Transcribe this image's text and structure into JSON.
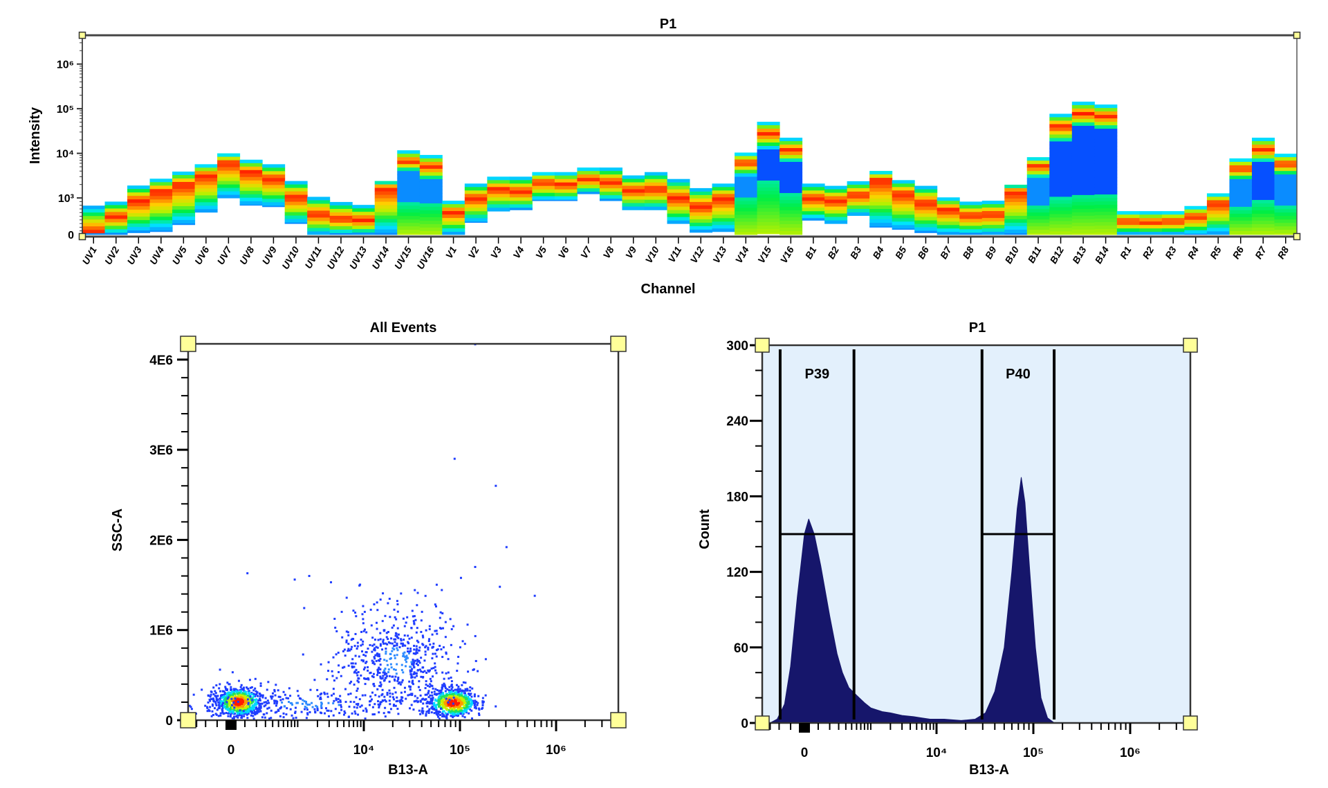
{
  "chart_data": [
    {
      "type": "heatmap",
      "title": "P1",
      "xlabel": "Channel",
      "ylabel": "Intensity",
      "yscale": "biexponential",
      "yticks": [
        {
          "label": "0",
          "value": 0
        },
        {
          "label": "10³",
          "value": 1000
        },
        {
          "label": "10⁴",
          "value": 10000
        },
        {
          "label": "10⁵",
          "value": 100000
        },
        {
          "label": "10⁶",
          "value": 1000000
        }
      ],
      "colormap": [
        "#0a8cff",
        "#00e5ff",
        "#00ee44",
        "#b8f000",
        "#ffd000",
        "#ff6a00",
        "#ff1a00"
      ],
      "channels": [
        {
          "name": "UV1",
          "top": 790,
          "bottom": 0,
          "peak": 50
        },
        {
          "name": "UV2",
          "top": 900,
          "bottom": 0,
          "peak": 490
        },
        {
          "name": "UV3",
          "top": 1900,
          "bottom": 50,
          "peak": 925
        },
        {
          "name": "UV4",
          "top": 2700,
          "bottom": 80,
          "peak": 1400
        },
        {
          "name": "UV5",
          "top": 3900,
          "bottom": 270,
          "peak": 2000
        },
        {
          "name": "UV6",
          "top": 5700,
          "bottom": 610,
          "peak": 3200
        },
        {
          "name": "UV7",
          "top": 10000,
          "bottom": 1000,
          "peak": 6100
        },
        {
          "name": "UV8",
          "top": 7200,
          "bottom": 800,
          "peak": 3800
        },
        {
          "name": "UV9",
          "top": 5700,
          "bottom": 760,
          "peak": 2700
        },
        {
          "name": "UV10",
          "top": 2400,
          "bottom": 300,
          "peak": 1030
        },
        {
          "name": "UV11",
          "top": 1060,
          "bottom": 0,
          "peak": 550
        },
        {
          "name": "UV12",
          "top": 890,
          "bottom": 0,
          "peak": 425
        },
        {
          "name": "UV13",
          "top": 810,
          "bottom": 0,
          "peak": 390
        },
        {
          "name": "UV14",
          "top": 2400,
          "bottom": 0,
          "peak": 1660
        },
        {
          "name": "UV15",
          "top": 11700,
          "bottom": 0,
          "peak": 6500,
          "bulk": [
            860,
            4000
          ]
        },
        {
          "name": "UV16",
          "top": 9200,
          "bottom": 0,
          "peak": 5100,
          "bulk": [
            860,
            2500
          ]
        },
        {
          "name": "V1",
          "top": 925,
          "bottom": 0,
          "peak": 610
        },
        {
          "name": "V2",
          "top": 2100,
          "bottom": 330,
          "peak": 990
        },
        {
          "name": "V3",
          "top": 3000,
          "bottom": 640,
          "peak": 1570
        },
        {
          "name": "V4",
          "top": 3000,
          "bottom": 675,
          "peak": 1390
        },
        {
          "name": "V5",
          "top": 3800,
          "bottom": 925,
          "peak": 2230
        },
        {
          "name": "V6",
          "top": 3800,
          "bottom": 925,
          "peak": 2000
        },
        {
          "name": "V7",
          "top": 4800,
          "bottom": 1240,
          "peak": 2660
        },
        {
          "name": "V8",
          "top": 4800,
          "bottom": 925,
          "peak": 2230
        },
        {
          "name": "V9",
          "top": 3200,
          "bottom": 675,
          "peak": 1475
        },
        {
          "name": "V10",
          "top": 3800,
          "bottom": 675,
          "peak": 1570
        },
        {
          "name": "V11",
          "top": 2660,
          "bottom": 300,
          "peak": 990
        },
        {
          "name": "V12",
          "top": 1660,
          "bottom": 60,
          "peak": 770
        },
        {
          "name": "V13",
          "top": 2100,
          "bottom": 80,
          "peak": 990
        },
        {
          "name": "V14",
          "top": 10400,
          "bottom": 0,
          "peak": 6100,
          "bulk": [
            1100,
            3200
          ]
        },
        {
          "name": "V15",
          "top": 51000,
          "bottom": 20,
          "peak": 28000,
          "bulk": [
            2500,
            13000
          ]
        },
        {
          "name": "V16",
          "top": 22400,
          "bottom": 0,
          "peak": 11700,
          "bulk": [
            1240,
            6400
          ]
        },
        {
          "name": "B1",
          "top": 2100,
          "bottom": 390,
          "peak": 990
        },
        {
          "name": "B2",
          "top": 1870,
          "bottom": 300,
          "peak": 925
        },
        {
          "name": "B3",
          "top": 2370,
          "bottom": 520,
          "peak": 1170
        },
        {
          "name": "B4",
          "top": 4030,
          "bottom": 200,
          "peak": 2510
        },
        {
          "name": "B5",
          "top": 2510,
          "bottom": 140,
          "peak": 1240
        },
        {
          "name": "B6",
          "top": 1870,
          "bottom": 50,
          "peak": 860
        },
        {
          "name": "B7",
          "top": 1030,
          "bottom": 0,
          "peak": 675
        },
        {
          "name": "B8",
          "top": 900,
          "bottom": 0,
          "peak": 520
        },
        {
          "name": "B9",
          "top": 925,
          "bottom": 0,
          "peak": 550
        },
        {
          "name": "B10",
          "top": 1980,
          "bottom": 0,
          "peak": 1390
        },
        {
          "name": "B11",
          "top": 8200,
          "bottom": 0,
          "peak": 5100,
          "bulk": [
            800,
            2830
          ]
        },
        {
          "name": "B12",
          "top": 77000,
          "bottom": 0,
          "peak": 40000,
          "bulk": [
            990,
            17600
          ]
        },
        {
          "name": "B13",
          "top": 144000,
          "bottom": 0,
          "peak": 77000,
          "bulk": [
            1240,
            40000
          ]
        },
        {
          "name": "B14",
          "top": 124000,
          "bottom": 0,
          "peak": 68000,
          "bulk": [
            1240,
            34000
          ]
        },
        {
          "name": "R1",
          "top": 640,
          "bottom": 0,
          "peak": 360
        },
        {
          "name": "R2",
          "top": 640,
          "bottom": 0,
          "peak": 330
        },
        {
          "name": "R3",
          "top": 640,
          "bottom": 0,
          "peak": 360
        },
        {
          "name": "R4",
          "top": 780,
          "bottom": 0,
          "peak": 490
        },
        {
          "name": "R5",
          "top": 1270,
          "bottom": 0,
          "peak": 860
        },
        {
          "name": "R6",
          "top": 7700,
          "bottom": 0,
          "peak": 4540,
          "bulk": [
            740,
            2510
          ]
        },
        {
          "name": "R7",
          "top": 22400,
          "bottom": 0,
          "peak": 12300,
          "bulk": [
            925,
            6400
          ]
        },
        {
          "name": "R8",
          "top": 9800,
          "bottom": 0,
          "peak": 5740,
          "bulk": [
            770,
            3200
          ]
        }
      ]
    },
    {
      "type": "scatter",
      "title": "All Events",
      "xlabel": "B13-A",
      "ylabel": "SSC-A",
      "xscale": "biexponential",
      "xticks": [
        {
          "label": "0",
          "value": 0
        },
        {
          "label": "10⁴",
          "value": 10000
        },
        {
          "label": "10⁵",
          "value": 100000
        },
        {
          "label": "10⁶",
          "value": 1000000
        }
      ],
      "yticks": [
        {
          "label": "0",
          "value": 0
        },
        {
          "label": "1E6",
          "value": 1000000
        },
        {
          "label": "2E6",
          "value": 2000000
        },
        {
          "label": "3E6",
          "value": 3000000
        },
        {
          "label": "4E6",
          "value": 4000000
        }
      ],
      "point_color": "#1f3dff",
      "populations": [
        {
          "x": 55,
          "y": 200000,
          "n": 700
        },
        {
          "x": 85000,
          "y": 190000,
          "n": 650
        },
        {
          "x": 21800,
          "y": 650000,
          "n": 600
        },
        {
          "x": 1500,
          "y": 180000,
          "n": 250
        }
      ],
      "points": [
        [
          144000,
          4170000
        ],
        [
          88000,
          2900000
        ],
        [
          236000,
          2600000
        ],
        [
          305000,
          1920000
        ],
        [
          144000,
          1700000
        ],
        [
          600000,
          1380000
        ],
        [
          260000,
          1480000
        ],
        [
          120,
          1630000
        ],
        [
          900,
          1560000
        ],
        [
          1500,
          1600000
        ],
        [
          3200,
          1530000
        ]
      ]
    },
    {
      "type": "area",
      "title": "P1",
      "xlabel": "B13-A",
      "ylabel": "Count",
      "xscale": "biexponential",
      "xticks": [
        {
          "label": "0",
          "value": 0
        },
        {
          "label": "10⁴",
          "value": 10000
        },
        {
          "label": "10⁵",
          "value": 100000
        },
        {
          "label": "10⁶",
          "value": 1000000
        }
      ],
      "yticks": [
        {
          "label": "0",
          "value": 0
        },
        {
          "label": "60",
          "value": 60
        },
        {
          "label": "120",
          "value": 120
        },
        {
          "label": "180",
          "value": 180
        },
        {
          "label": "240",
          "value": 240
        },
        {
          "label": "300",
          "value": 300
        }
      ],
      "ylim": [
        0,
        300
      ],
      "fill_color": "#16166b",
      "background_color": "#e3f0fc",
      "x": [
        -300,
        -220,
        -150,
        -100,
        -50,
        0,
        30,
        70,
        120,
        200,
        280,
        350,
        450,
        600,
        800,
        1000,
        1500,
        2000,
        3000,
        4500,
        6000,
        8000,
        12000,
        18000,
        25000,
        32000,
        40000,
        50000,
        60000,
        68000,
        75000,
        82000,
        92000,
        105000,
        120000,
        140000,
        165000
      ],
      "counts": [
        0,
        3,
        15,
        45,
        100,
        150,
        162,
        150,
        125,
        85,
        55,
        40,
        28,
        22,
        16,
        12,
        9,
        8,
        6,
        5,
        4,
        3,
        3,
        2,
        3,
        8,
        25,
        60,
        120,
        170,
        195,
        175,
        120,
        60,
        20,
        4,
        0
      ],
      "gates": [
        {
          "name": "P39",
          "x": [
            -190,
            545
          ],
          "y": 150
        },
        {
          "name": "P40",
          "x": [
            29500,
            164000
          ],
          "y": 150
        }
      ]
    }
  ]
}
